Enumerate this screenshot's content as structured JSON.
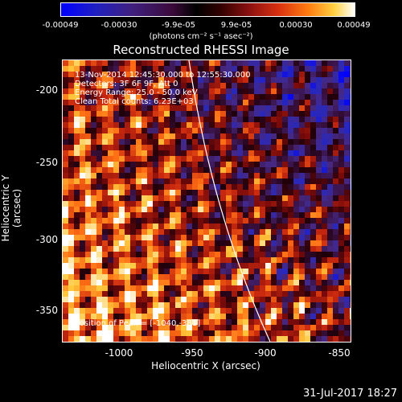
{
  "colorbar": {
    "tick_labels": [
      "-0.00049",
      "-0.00030",
      "-9.9e-05",
      "9.9e-05",
      "0.00030",
      "0.00049"
    ],
    "units": "(photons cm⁻² s⁻¹ asec⁻²)"
  },
  "image": {
    "title": "Reconstructed RHESSI Image",
    "info_lines": [
      "13-Nov-2014 12:45:30.000 to 12:55:30.000",
      "Detectors: 3F 6F 9F, Att 0",
      "Energy Range: 25.0 - 50.0 keV",
      "Clean    Total counts: 6.23E+03"
    ],
    "peak_label": "Position of Peak = [-1040,-381]",
    "xlabel": "Heliocentric X (arcsec)",
    "ylabel": "Heliocentric Y (arcsec)",
    "x_ticks": [
      "-1000",
      "-950",
      "-900",
      "-850"
    ],
    "y_ticks": [
      "-200",
      "-250",
      "-300",
      "-350"
    ],
    "x_range": [
      -1040,
      -850
    ],
    "y_range": [
      -373,
      -176
    ]
  },
  "footer": {
    "date": "31-Jul-2017 18:27"
  }
}
